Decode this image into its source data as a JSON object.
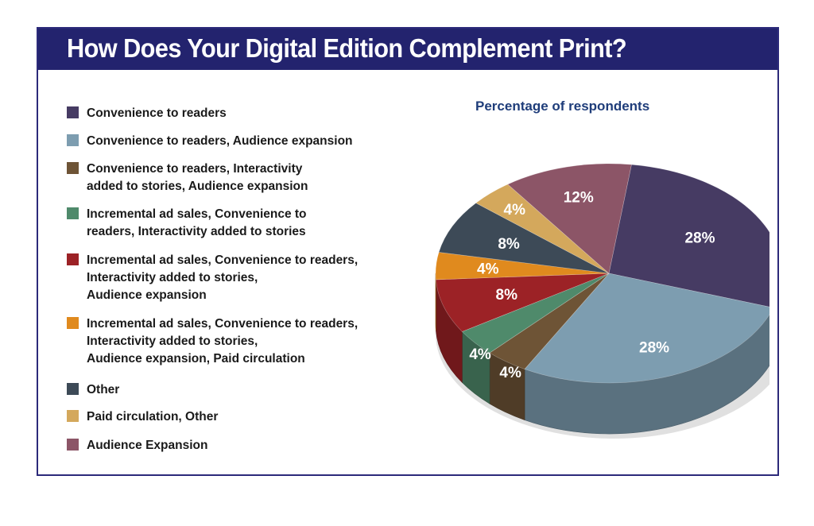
{
  "chart_data": {
    "type": "pie",
    "title": "How Does Your Digital Edition Complement Print?",
    "subtitle": "Percentage of respondents",
    "slices": [
      {
        "label": "Convenience to readers",
        "value": 28,
        "display": "28%",
        "color": "#463b63"
      },
      {
        "label": "Convenience to readers, Audience expansion",
        "value": 28,
        "display": "28%",
        "color": "#7d9db0"
      },
      {
        "label": "Convenience to readers, Interactivity\nadded to stories, Audience expansion",
        "value": 4,
        "display": "4%",
        "color": "#6e5436"
      },
      {
        "label": "Incremental ad sales, Convenience to\nreaders, Interactivity added to stories",
        "value": 4,
        "display": "4%",
        "color": "#4f8a6b"
      },
      {
        "label": "Incremental ad sales, Convenience to readers,\nInteractivity added to stories,\nAudience expansion",
        "value": 8,
        "display": "8%",
        "color": "#9c2226"
      },
      {
        "label": "Incremental ad sales, Convenience to readers,\nInteractivity added to stories,\nAudience expansion, Paid circulation",
        "value": 4,
        "display": "4%",
        "color": "#e08a1e"
      },
      {
        "label": "Other",
        "value": 8,
        "display": "8%",
        "color": "#3d4a57"
      },
      {
        "label": "Paid circulation, Other",
        "value": 4,
        "display": "4%",
        "color": "#d4a85c"
      },
      {
        "label": "Audience Expansion",
        "value": 12,
        "display": "12%",
        "color": "#8c5567"
      }
    ]
  }
}
